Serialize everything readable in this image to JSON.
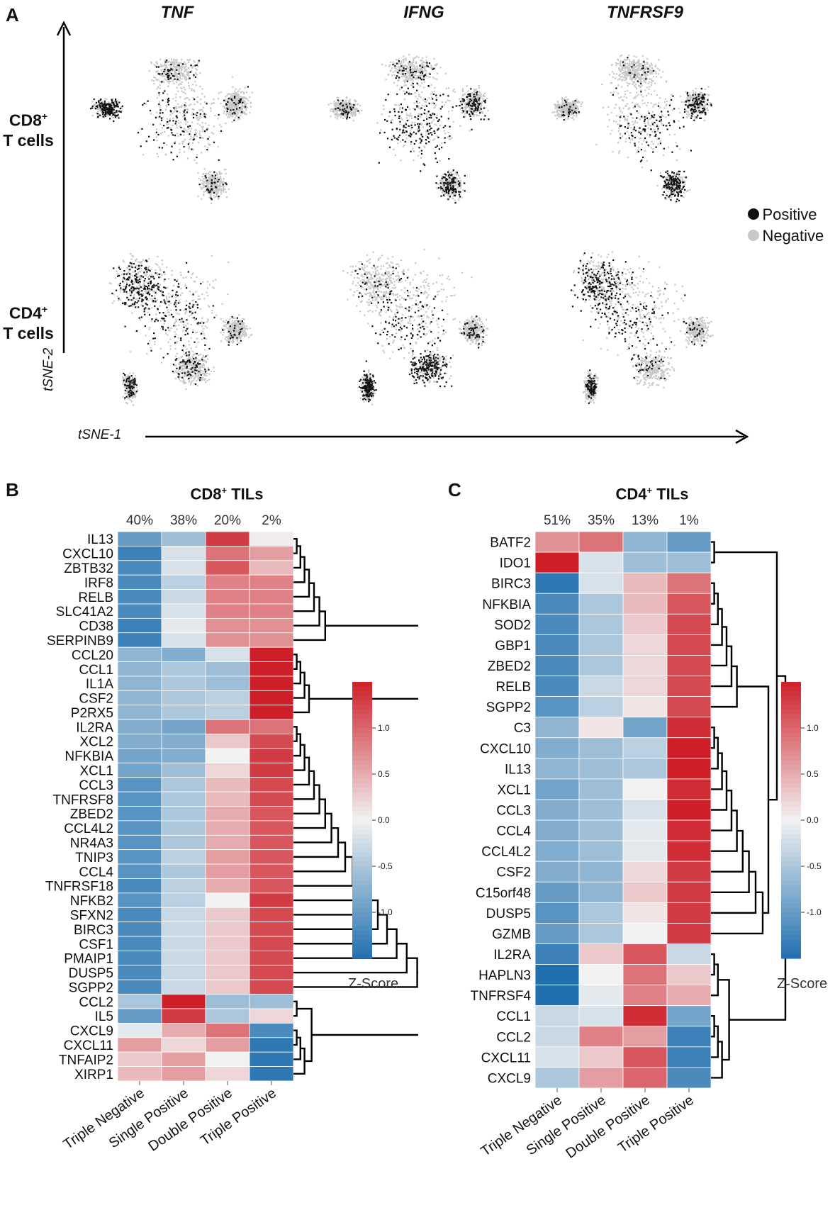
{
  "panelA": {
    "letter": "A",
    "genes": [
      "TNF",
      "IFNG",
      "TNFRSF9"
    ],
    "rows": [
      {
        "label_line1": "CD8",
        "sup": "+",
        "label_line2": "T cells"
      },
      {
        "label_line1": "CD4",
        "sup": "+",
        "label_line2": "T cells"
      }
    ],
    "legend": [
      {
        "label": "Positive",
        "color": "#111111"
      },
      {
        "label": "Negative",
        "color": "#c8c8c8"
      }
    ],
    "xaxis": "tSNE-1",
    "yaxis": "tSNE-2"
  },
  "chart_data": [
    {
      "type": "heatmap",
      "panel": "B",
      "title": "CD8",
      "title_sup": "+",
      "title_suffix": " TILs",
      "percentages": [
        "40%",
        "38%",
        "20%",
        "2%"
      ],
      "columns": [
        "Triple Negative",
        "Single Positive",
        "Double Positive",
        "Triple Positive"
      ],
      "rows": [
        "IL13",
        "CXCL10",
        "ZBTB32",
        "IRF8",
        "RELB",
        "SLC41A2",
        "CD38",
        "SERPINB9",
        "CCL20",
        "CCL1",
        "IL1A",
        "CSF2",
        "P2RX5",
        "IL2RA",
        "XCL2",
        "NFKBIA",
        "XCL1",
        "CCL3",
        "TNFRSF8",
        "ZBED2",
        "CCL4L2",
        "NR4A3",
        "TNIP3",
        "CCL4",
        "TNFRSF18",
        "NFKB2",
        "SFXN2",
        "BIRC3",
        "CSF1",
        "PMAIP1",
        "DUSP5",
        "SGPP2",
        "CCL2",
        "IL5",
        "CXCL9",
        "CXCL11",
        "TNFAIP2",
        "XIRP1"
      ],
      "values": [
        [
          -1.0,
          -0.6,
          1.3,
          0.05
        ],
        [
          -1.3,
          -0.2,
          0.9,
          0.6
        ],
        [
          -1.2,
          -0.2,
          1.1,
          0.4
        ],
        [
          -1.2,
          -0.4,
          0.8,
          0.8
        ],
        [
          -1.2,
          -0.3,
          0.8,
          0.8
        ],
        [
          -1.2,
          -0.2,
          0.8,
          0.8
        ],
        [
          -1.3,
          -0.1,
          0.7,
          0.7
        ],
        [
          -1.3,
          -0.2,
          0.7,
          0.7
        ],
        [
          -0.7,
          -0.8,
          -0.2,
          1.5
        ],
        [
          -0.7,
          -0.5,
          -0.6,
          1.5
        ],
        [
          -0.7,
          -0.5,
          -0.6,
          1.5
        ],
        [
          -0.7,
          -0.5,
          -0.4,
          1.5
        ],
        [
          -0.7,
          -0.5,
          -0.4,
          1.5
        ],
        [
          -0.8,
          -0.9,
          0.9,
          0.9
        ],
        [
          -0.8,
          -0.8,
          0.3,
          1.2
        ],
        [
          -0.9,
          -0.8,
          0.0,
          1.3
        ],
        [
          -0.9,
          -0.6,
          0.2,
          1.3
        ],
        [
          -1.1,
          -0.5,
          0.4,
          1.2
        ],
        [
          -1.1,
          -0.5,
          0.4,
          1.2
        ],
        [
          -1.1,
          -0.5,
          0.5,
          1.1
        ],
        [
          -1.1,
          -0.5,
          0.5,
          1.1
        ],
        [
          -1.1,
          -0.5,
          0.5,
          1.1
        ],
        [
          -1.1,
          -0.4,
          0.6,
          1.1
        ],
        [
          -1.1,
          -0.5,
          0.6,
          1.1
        ],
        [
          -1.2,
          -0.4,
          0.5,
          1.1
        ],
        [
          -1.1,
          -0.4,
          0.0,
          1.3
        ],
        [
          -1.2,
          -0.3,
          0.3,
          1.2
        ],
        [
          -1.2,
          -0.3,
          0.3,
          1.2
        ],
        [
          -1.2,
          -0.3,
          0.3,
          1.2
        ],
        [
          -1.2,
          -0.3,
          0.3,
          1.2
        ],
        [
          -1.2,
          -0.3,
          0.3,
          1.2
        ],
        [
          -1.2,
          -0.3,
          0.3,
          1.2
        ],
        [
          -0.5,
          1.5,
          -0.6,
          -0.6
        ],
        [
          -1.0,
          1.3,
          -0.5,
          0.2
        ],
        [
          -0.1,
          0.5,
          0.9,
          -1.2
        ],
        [
          0.6,
          0.2,
          0.6,
          -1.4
        ],
        [
          0.3,
          0.6,
          0.0,
          -1.4
        ],
        [
          0.4,
          0.6,
          0.2,
          -1.4
        ]
      ],
      "colorbar": {
        "label": "Z-Score",
        "ticks": [
          "1.0",
          "0.5",
          "0.0",
          "-0.5",
          "-1.0"
        ],
        "range": [
          -1.5,
          1.5
        ]
      }
    },
    {
      "type": "heatmap",
      "panel": "C",
      "title": "CD4",
      "title_sup": "+",
      "title_suffix": " TILs",
      "percentages": [
        "51%",
        "35%",
        "13%",
        "1%"
      ],
      "columns": [
        "Triple Negative",
        "Single Positive",
        "Double Positive",
        "Triple Positive"
      ],
      "rows": [
        "BATF2",
        "IDO1",
        "BIRC3",
        "NFKBIA",
        "SOD2",
        "GBP1",
        "ZBED2",
        "RELB",
        "SGPP2",
        "C3",
        "CXCL10",
        "IL13",
        "XCL1",
        "CCL3",
        "CCL4",
        "CCL4L2",
        "CSF2",
        "C15orf48",
        "DUSP5",
        "GZMB",
        "IL2RA",
        "HAPLN3",
        "TNFRSF4",
        "CCL1",
        "CCL2",
        "CXCL11",
        "CXCL9"
      ],
      "values": [
        [
          0.7,
          0.9,
          -0.7,
          -1.0
        ],
        [
          1.5,
          -0.2,
          -0.6,
          -0.6
        ],
        [
          -1.4,
          -0.2,
          0.4,
          0.9
        ],
        [
          -1.2,
          -0.5,
          0.4,
          1.1
        ],
        [
          -1.2,
          -0.5,
          0.3,
          1.2
        ],
        [
          -1.2,
          -0.5,
          0.2,
          1.2
        ],
        [
          -1.2,
          -0.5,
          0.2,
          1.2
        ],
        [
          -1.2,
          -0.3,
          0.2,
          1.2
        ],
        [
          -1.1,
          -0.4,
          0.1,
          1.2
        ],
        [
          -0.7,
          0.1,
          -0.9,
          1.4
        ],
        [
          -0.8,
          -0.6,
          -0.4,
          1.5
        ],
        [
          -0.7,
          -0.6,
          -0.5,
          1.5
        ],
        [
          -0.9,
          -0.6,
          0.0,
          1.4
        ],
        [
          -0.8,
          -0.6,
          -0.2,
          1.5
        ],
        [
          -0.8,
          -0.6,
          -0.1,
          1.4
        ],
        [
          -0.8,
          -0.6,
          -0.1,
          1.4
        ],
        [
          -0.8,
          -0.7,
          0.2,
          1.3
        ],
        [
          -1.0,
          -0.7,
          0.3,
          1.3
        ],
        [
          -1.1,
          -0.5,
          0.1,
          1.3
        ],
        [
          -1.0,
          -0.5,
          0.0,
          1.3
        ],
        [
          -1.3,
          0.3,
          1.1,
          -0.3
        ],
        [
          -1.5,
          0.0,
          0.9,
          0.3
        ],
        [
          -1.5,
          -0.1,
          0.8,
          0.5
        ],
        [
          -0.3,
          -0.2,
          1.4,
          -0.9
        ],
        [
          -0.3,
          0.8,
          0.6,
          -1.3
        ],
        [
          -0.2,
          0.3,
          1.1,
          -1.3
        ],
        [
          -0.5,
          0.6,
          1.0,
          -1.2
        ]
      ],
      "colorbar": {
        "label": "Z-Score",
        "ticks": [
          "1.0",
          "0.5",
          "0.0",
          "-0.5",
          "-1.0"
        ],
        "range": [
          -1.5,
          1.5
        ]
      }
    }
  ]
}
